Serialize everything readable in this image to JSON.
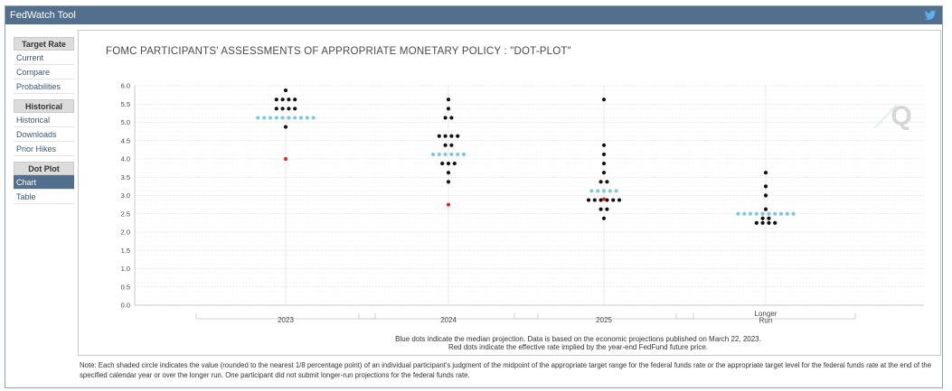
{
  "app": {
    "title": "FedWatch Tool"
  },
  "sidebar": {
    "groups": [
      {
        "header": "Target Rate",
        "items": [
          "Current",
          "Compare",
          "Probabilities"
        ]
      },
      {
        "header": "Historical",
        "items": [
          "Historical",
          "Downloads",
          "Prior Hikes"
        ]
      },
      {
        "header": "Dot Plot",
        "items": [
          "Chart",
          "Table"
        ]
      }
    ],
    "active": "Chart"
  },
  "watermark": "Q",
  "colors": {
    "titlebar": "#536f8e",
    "dot": "#111111",
    "median": "#7ec8d8",
    "effective": "#dd2222",
    "grid": "#dddddd"
  },
  "chart_data": {
    "type": "scatter",
    "title": "FOMC PARTICIPANTS' ASSESSMENTS OF APPROPRIATE MONETARY POLICY : \"DOT-PLOT\"",
    "ylim": [
      0,
      6
    ],
    "yticks": [
      "0.0",
      "0.5",
      "1.0",
      "1.5",
      "2.0",
      "2.5",
      "3.0",
      "3.5",
      "4.0",
      "4.5",
      "5.0",
      "5.5",
      "6.0"
    ],
    "categories": [
      "2023",
      "2024",
      "2025",
      "Longer Run"
    ],
    "category_label_lines": [
      [
        "2023"
      ],
      [
        "2024"
      ],
      [
        "2025"
      ],
      [
        "Longer",
        "Run"
      ]
    ],
    "participants": [
      {
        "category": "2023",
        "levels": [
          {
            "value": 5.875,
            "count": 1
          },
          {
            "value": 5.625,
            "count": 4
          },
          {
            "value": 5.375,
            "count": 4
          },
          {
            "value": 4.875,
            "count": 1
          }
        ]
      },
      {
        "category": "2024",
        "levels": [
          {
            "value": 5.625,
            "count": 1
          },
          {
            "value": 5.375,
            "count": 1
          },
          {
            "value": 5.125,
            "count": 2
          },
          {
            "value": 4.625,
            "count": 4
          },
          {
            "value": 4.375,
            "count": 2
          },
          {
            "value": 3.875,
            "count": 3
          },
          {
            "value": 3.625,
            "count": 1
          },
          {
            "value": 3.375,
            "count": 1
          }
        ]
      },
      {
        "category": "2025",
        "levels": [
          {
            "value": 5.625,
            "count": 1
          },
          {
            "value": 4.375,
            "count": 1
          },
          {
            "value": 4.125,
            "count": 1
          },
          {
            "value": 3.875,
            "count": 1
          },
          {
            "value": 3.625,
            "count": 1
          },
          {
            "value": 3.375,
            "count": 2
          },
          {
            "value": 2.875,
            "count": 6
          },
          {
            "value": 2.625,
            "count": 2
          },
          {
            "value": 2.375,
            "count": 1
          }
        ]
      },
      {
        "category": "Longer Run",
        "levels": [
          {
            "value": 3.625,
            "count": 1
          },
          {
            "value": 3.25,
            "count": 1
          },
          {
            "value": 3.0,
            "count": 1
          },
          {
            "value": 2.625,
            "count": 1
          },
          {
            "value": 2.375,
            "count": 2
          },
          {
            "value": 2.25,
            "count": 4
          }
        ]
      }
    ],
    "median": [
      {
        "category": "2023",
        "value": 5.125,
        "count": 10
      },
      {
        "category": "2024",
        "value": 4.125,
        "count": 6
      },
      {
        "category": "2025",
        "value": 3.125,
        "count": 5
      },
      {
        "category": "Longer Run",
        "value": 2.5,
        "count": 10
      }
    ],
    "effective_rate": [
      {
        "category": "2023",
        "value": 4.0
      },
      {
        "category": "2024",
        "value": 2.75
      },
      {
        "category": "2025",
        "value": 2.9
      }
    ],
    "grid": true,
    "legend_lines": [
      "Blue dots indicate the median projection. Data is based on the economic projections published on March 22, 2023.",
      "Red dots indicate the effective rate implied by the year-end FedFund future price."
    ]
  },
  "note": "Note: Each shaded circle indicates the value (rounded to the nearest 1/8 percentage point) of an individual participant's judgment of the midpoint of the appropriate target range for the federal funds rate or the appropriate target level for the federal funds rate at the end of the specified calendar year or over the longer run. One participant did not submit longer-run projections for the federal funds rate."
}
